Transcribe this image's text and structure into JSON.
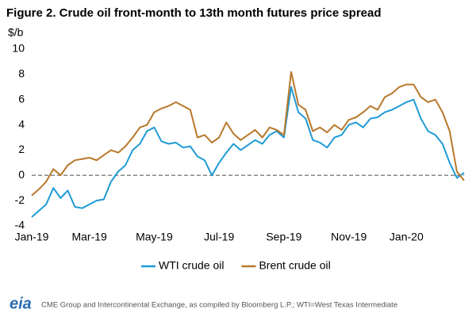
{
  "chart_data": {
    "type": "line",
    "title": "Figure 2. Crude oil front-month to 13th month futures price spread",
    "y_label": "$/b",
    "categories": [
      "Jan-19",
      null,
      null,
      null,
      null,
      null,
      null,
      null,
      "Mar-19",
      null,
      null,
      null,
      null,
      null,
      null,
      null,
      null,
      "May-19",
      null,
      null,
      null,
      null,
      null,
      null,
      null,
      null,
      "Jul-19",
      null,
      null,
      null,
      null,
      null,
      null,
      null,
      null,
      "Sep-19",
      null,
      null,
      null,
      null,
      null,
      null,
      null,
      null,
      "Nov-19",
      null,
      null,
      null,
      null,
      null,
      null,
      null,
      "Jan-20",
      null,
      null,
      null,
      null,
      null,
      null,
      null,
      null
    ],
    "series": [
      {
        "name": "WTI crude oil",
        "color": "#1f9ad6",
        "values": [
          -3.3,
          -2.8,
          -2.3,
          -1.0,
          -1.8,
          -1.2,
          -2.5,
          -2.6,
          -2.3,
          -2.0,
          -1.9,
          -0.5,
          0.3,
          0.8,
          2.0,
          2.5,
          3.5,
          3.8,
          2.7,
          2.5,
          2.6,
          2.2,
          2.3,
          1.5,
          1.2,
          0.0,
          1.0,
          1.8,
          2.5,
          2.0,
          2.4,
          2.8,
          2.5,
          3.2,
          3.5,
          3.0,
          7.0,
          5.0,
          4.5,
          2.8,
          2.6,
          2.2,
          3.0,
          3.2,
          4.0,
          4.2,
          3.8,
          4.5,
          4.6,
          5.0,
          5.2,
          5.5,
          5.8,
          6.0,
          4.5,
          3.5,
          3.2,
          2.5,
          1.0,
          -0.2,
          0.2
        ]
      },
      {
        "name": "Brent crude oil",
        "color": "#b8782a",
        "values": [
          -1.6,
          -1.1,
          -0.5,
          0.5,
          0.0,
          0.8,
          1.2,
          1.3,
          1.4,
          1.2,
          1.6,
          2.0,
          1.8,
          2.3,
          3.0,
          3.8,
          4.0,
          5.0,
          5.3,
          5.5,
          5.8,
          5.5,
          5.2,
          3.0,
          3.2,
          2.6,
          3.0,
          4.2,
          3.3,
          2.8,
          3.2,
          3.6,
          3.0,
          3.8,
          3.6,
          3.2,
          8.2,
          5.6,
          5.2,
          3.5,
          3.8,
          3.4,
          4.0,
          3.6,
          4.4,
          4.6,
          5.0,
          5.5,
          5.2,
          6.2,
          6.5,
          7.0,
          7.2,
          7.2,
          6.2,
          5.8,
          6.0,
          5.0,
          3.5,
          0.3,
          -0.4
        ]
      }
    ],
    "ylim": [
      -4,
      10
    ],
    "yticks": [
      -4,
      -2,
      0,
      2,
      4,
      6,
      8,
      10
    ],
    "zero_line": true,
    "grid": false,
    "legend": "bottom",
    "logo": "eia",
    "source": "CME Group and Intercontinental Exchange, as compiled by Bloomberg L.P.; WTI=West Texas Intermediate"
  }
}
